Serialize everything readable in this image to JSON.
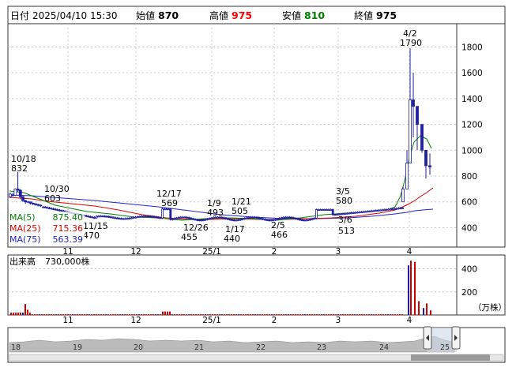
{
  "header": {
    "date_label": "日付",
    "datetime": "2025/04/10 15:30",
    "open_label": "始値",
    "open": "870",
    "high_label": "高値",
    "high": "975",
    "low_label": "安値",
    "low": "810",
    "close_label": "終値",
    "close": "975"
  },
  "colors": {
    "up": "#ffffff",
    "down": "#1f1fa0",
    "high": "#ff0000",
    "low": "#008000",
    "ma5": "#008000",
    "ma25": "#dd0000",
    "ma75": "#2222cc",
    "volume": "#cc0000",
    "volume_dark": "#1f1fa0",
    "grid": "#cccccc",
    "frame": "#333333",
    "nav_fill": "#bbbbbb"
  },
  "chart_data": {
    "type": "candlestick",
    "ylim": [
      250,
      1980
    ],
    "yticks": [
      400,
      600,
      800,
      1000,
      1200,
      1400,
      1600,
      1800
    ],
    "xlabels": [
      "11",
      "12",
      "25/1",
      "2",
      "3",
      "4"
    ],
    "annotations": [
      {
        "date": "10/18",
        "value": "832",
        "kind": "high"
      },
      {
        "date": "10/30",
        "value": "603",
        "kind": "high"
      },
      {
        "date": "11/15",
        "value": "470",
        "kind": "low"
      },
      {
        "date": "12/17",
        "value": "569",
        "kind": "high"
      },
      {
        "date": "12/26",
        "value": "455",
        "kind": "low"
      },
      {
        "date": "1/9",
        "value": "493",
        "kind": "high"
      },
      {
        "date": "1/17",
        "value": "440",
        "kind": "low"
      },
      {
        "date": "1/21",
        "value": "505",
        "kind": "high"
      },
      {
        "date": "2/5",
        "value": "466",
        "kind": "low"
      },
      {
        "date": "3/5",
        "value": "580",
        "kind": "high"
      },
      {
        "date": "3/6",
        "value": "513",
        "kind": "low"
      },
      {
        "date": "4/2",
        "value": "1790",
        "kind": "high"
      }
    ],
    "moving_averages": [
      {
        "name": "MA(5)",
        "value": "875.40"
      },
      {
        "name": "MA(25)",
        "value": "715.36"
      },
      {
        "name": "MA(75)",
        "value": "563.39"
      }
    ],
    "volume": {
      "label": "出来高",
      "latest": "730,000株",
      "unit": "（万株）",
      "ylim": [
        0,
        520
      ],
      "yticks": [
        200,
        400
      ]
    },
    "navigator": {
      "labels": [
        "18",
        "19",
        "20",
        "21",
        "22",
        "23",
        "24",
        "25"
      ]
    }
  }
}
